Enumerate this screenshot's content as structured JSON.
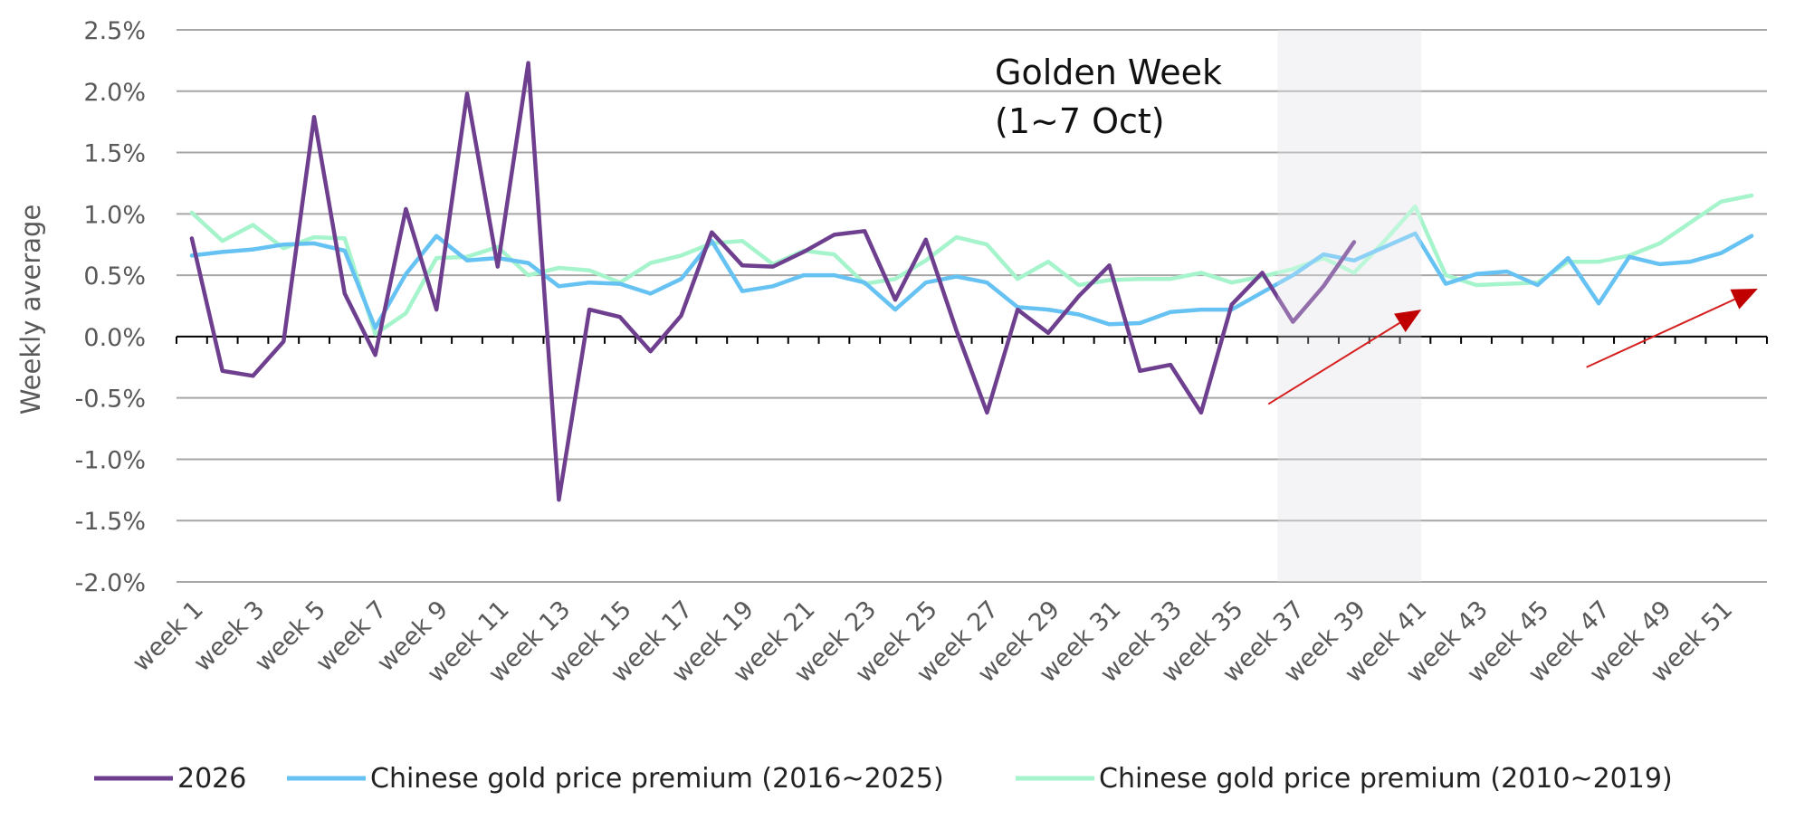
{
  "chart_data": {
    "type": "line",
    "ylabel": "Weekly average",
    "ylim": [
      -2.0,
      2.5
    ],
    "y_ticks": [
      "-2.0%",
      "-1.5%",
      "-1.0%",
      "-0.5%",
      "0.0%",
      "0.5%",
      "1.0%",
      "1.5%",
      "2.0%",
      "2.5%"
    ],
    "x_tick_labels": [
      "week 1",
      "week 3",
      "week 5",
      "week 7",
      "week 9",
      "week 11",
      "week 13",
      "week 15",
      "week 17",
      "week 19",
      "week 21",
      "week 23",
      "week 25",
      "week 27",
      "week 29",
      "week 31",
      "week 33",
      "week 35",
      "week 37",
      "week 39",
      "week 41",
      "week 43",
      "week 45",
      "week 47",
      "week 49",
      "week 51"
    ],
    "grid": true,
    "legend_position": "bottom",
    "highlight": {
      "from_week": 36.5,
      "to_week": 41.2,
      "color": "#f0eff2"
    },
    "annotation": {
      "lines": [
        "Golden Week",
        "(1~7 Oct)"
      ]
    },
    "arrows": [
      {
        "from": [
          36.2,
          -0.55
        ],
        "to": [
          41.2,
          0.22
        ],
        "color": "#d62020"
      },
      {
        "from": [
          46.6,
          -0.25
        ],
        "to": [
          52.2,
          0.39
        ],
        "color": "#d62020"
      }
    ],
    "series": [
      {
        "name": "2026",
        "color": "#6e3f8f",
        "values": [
          0.8,
          -0.28,
          -0.32,
          -0.04,
          1.79,
          0.35,
          -0.15,
          1.04,
          0.22,
          1.98,
          0.57,
          2.23,
          -1.33,
          0.22,
          0.16,
          -0.12,
          0.17,
          0.85,
          0.58,
          0.57,
          0.69,
          0.83,
          0.86,
          0.3,
          0.79,
          0.05,
          -0.62,
          0.22,
          0.03,
          0.33,
          0.58,
          -0.28,
          -0.23,
          -0.62,
          0.26,
          0.52,
          0.12,
          0.41,
          0.77
        ]
      },
      {
        "name": "Chinese gold price premium (2016~2025)",
        "color": "#66c2f2",
        "values": [
          0.66,
          0.69,
          0.71,
          0.75,
          0.76,
          0.7,
          0.07,
          0.51,
          0.82,
          0.62,
          0.64,
          0.6,
          0.41,
          0.44,
          0.43,
          0.35,
          0.47,
          0.78,
          0.37,
          0.41,
          0.5,
          0.5,
          0.44,
          0.22,
          0.44,
          0.49,
          0.44,
          0.24,
          0.22,
          0.18,
          0.1,
          0.11,
          0.2,
          0.22,
          0.22,
          0.36,
          0.5,
          0.67,
          0.62,
          0.73,
          0.84,
          0.43,
          0.51,
          0.53,
          0.42,
          0.64,
          0.27,
          0.65,
          0.59,
          0.61,
          0.68,
          0.82
        ]
      },
      {
        "name": "Chinese gold price premium (2010~2019)",
        "color": "#a6f4cc",
        "values": [
          1.01,
          0.78,
          0.91,
          0.72,
          0.81,
          0.8,
          0.02,
          0.19,
          0.64,
          0.65,
          0.73,
          0.5,
          0.56,
          0.54,
          0.44,
          0.6,
          0.66,
          0.76,
          0.78,
          0.59,
          0.7,
          0.67,
          0.43,
          0.47,
          0.62,
          0.81,
          0.75,
          0.47,
          0.61,
          0.42,
          0.46,
          0.47,
          0.47,
          0.52,
          0.44,
          0.49,
          0.55,
          0.64,
          0.52,
          0.78,
          1.06,
          0.5,
          0.42,
          0.43,
          0.44,
          0.61,
          0.61,
          0.66,
          0.76,
          0.93,
          1.1,
          1.15
        ]
      }
    ]
  }
}
